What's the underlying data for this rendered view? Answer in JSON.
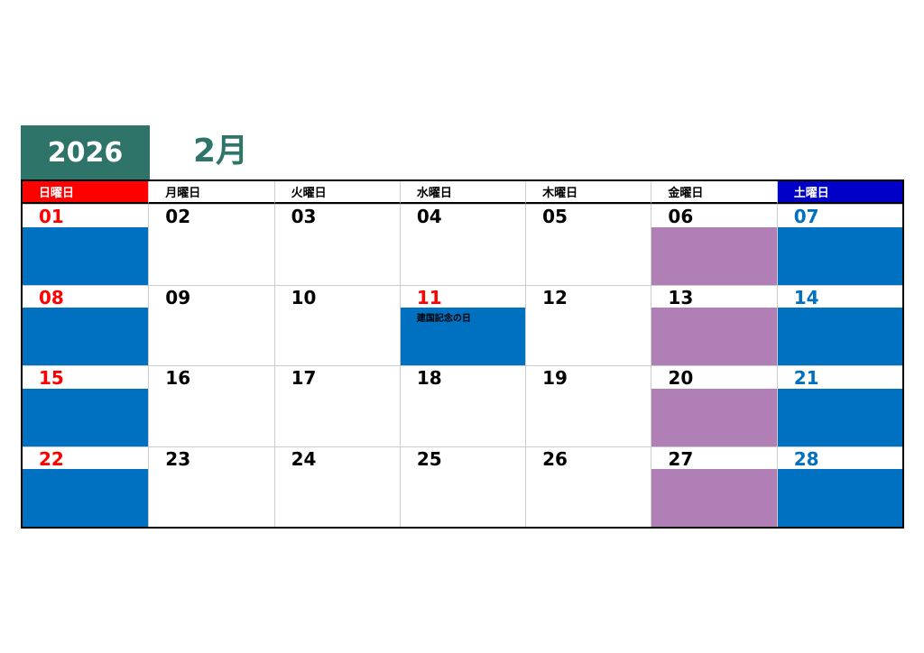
{
  "header": {
    "year": "2026",
    "month": "2月"
  },
  "weekdays": [
    "日曜日",
    "月曜日",
    "火曜日",
    "水曜日",
    "木曜日",
    "金曜日",
    "土曜日"
  ],
  "weeks": [
    [
      {
        "day": "01"
      },
      {
        "day": "02"
      },
      {
        "day": "03"
      },
      {
        "day": "04"
      },
      {
        "day": "05"
      },
      {
        "day": "06"
      },
      {
        "day": "07"
      }
    ],
    [
      {
        "day": "08"
      },
      {
        "day": "09"
      },
      {
        "day": "10"
      },
      {
        "day": "11",
        "holiday": "建国記念の日"
      },
      {
        "day": "12"
      },
      {
        "day": "13"
      },
      {
        "day": "14"
      }
    ],
    [
      {
        "day": "15"
      },
      {
        "day": "16"
      },
      {
        "day": "17"
      },
      {
        "day": "18"
      },
      {
        "day": "19"
      },
      {
        "day": "20"
      },
      {
        "day": "21"
      }
    ],
    [
      {
        "day": "22"
      },
      {
        "day": "23"
      },
      {
        "day": "24"
      },
      {
        "day": "25"
      },
      {
        "day": "26"
      },
      {
        "day": "27"
      },
      {
        "day": "28"
      }
    ]
  ]
}
